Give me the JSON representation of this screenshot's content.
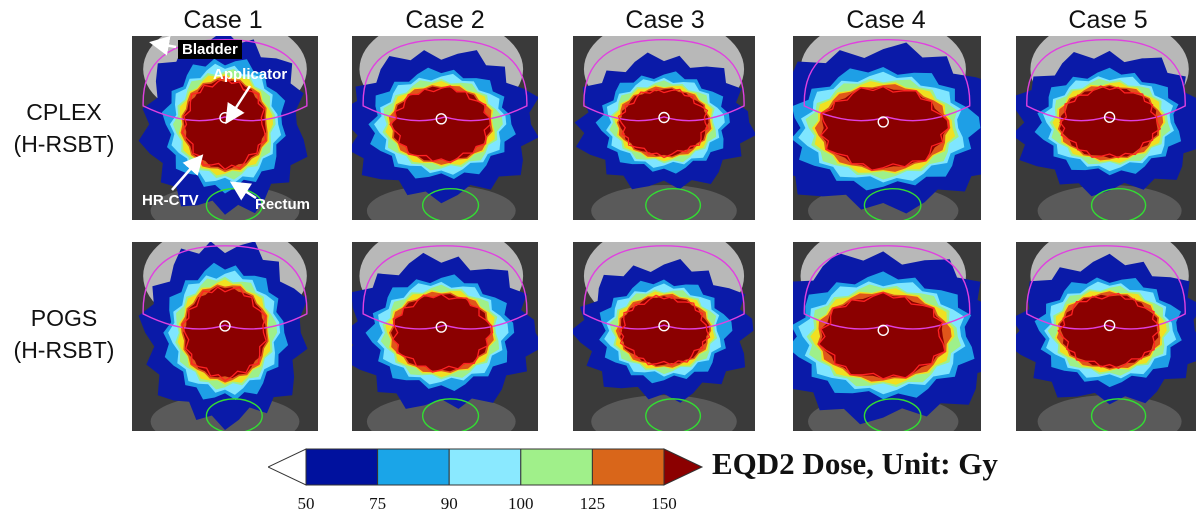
{
  "columns": [
    "Case 1",
    "Case 2",
    "Case 3",
    "Case 4",
    "Case 5"
  ],
  "rows": [
    {
      "line1": "CPLEX",
      "line2": "(H-RSBT)"
    },
    {
      "line1": "POGS",
      "line2": "(H-RSBT)"
    }
  ],
  "annotations": {
    "bladder": "Bladder",
    "applicator": "Applicator",
    "hr_ctv": "HR-CTV",
    "rectum": "Rectum"
  },
  "colorbar": {
    "title": "EQD2 Dose, Unit: Gy",
    "ticks": [
      "50",
      "75",
      "90",
      "100",
      "125",
      "150"
    ],
    "bin_colors": [
      "#00119e",
      "#1aa5e8",
      "#8ae9ff",
      "#a0f08a",
      "#d9661a"
    ],
    "under_color": "#ffffff",
    "over_color": "#8b0000"
  },
  "dose_colors": {
    "level_50": "#0a1aa8",
    "level_75": "#1e9fe6",
    "level_90": "#7fe6ff",
    "level_100": "#9ef08a",
    "level_120": "#f0e020",
    "level_125": "#e0561a",
    "level_150": "#8b0000"
  },
  "contour_colors": {
    "bladder": "#e040e0",
    "rectum": "#33dd33",
    "hr_ctv": "#ff2222",
    "applicator": "#ffffff"
  }
}
